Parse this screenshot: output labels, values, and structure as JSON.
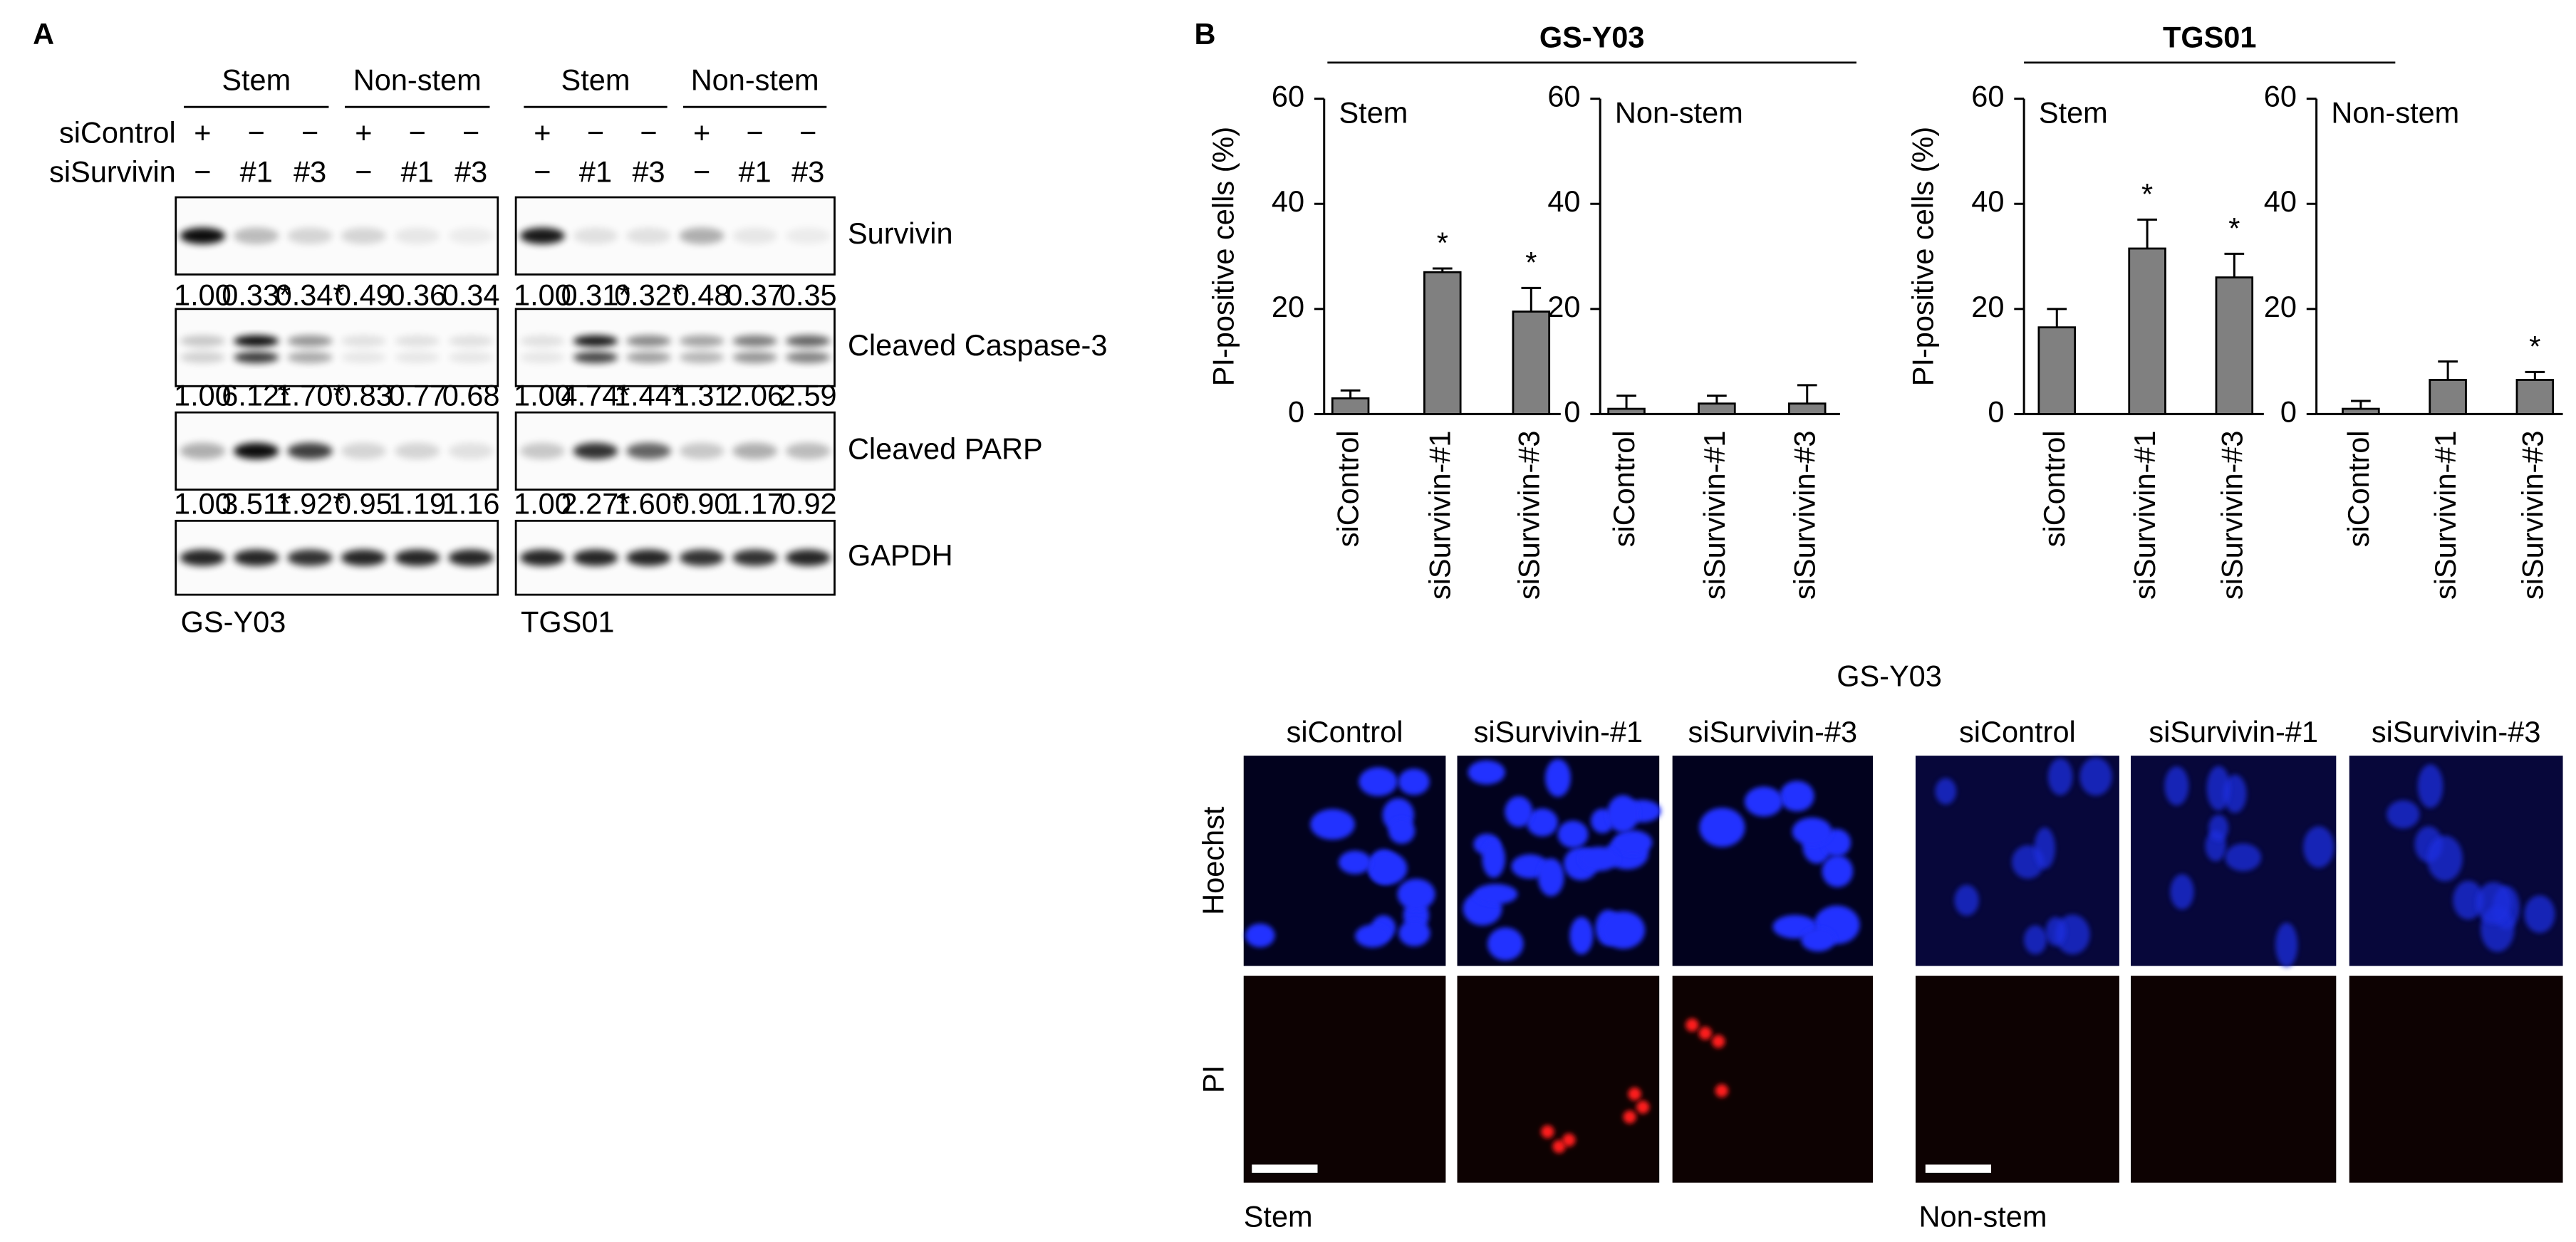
{
  "panel_a": {
    "label": "A",
    "row_labels": [
      "siControl",
      "siSurvivin"
    ],
    "blot_labels": [
      "Survivin",
      "Cleaved Caspase-3",
      "Cleaved PARP",
      "GAPDH"
    ],
    "cell_lines": [
      {
        "name": "GS-Y03",
        "groups": [
          "Stem",
          "Non-stem"
        ],
        "lanes": [
          [
            "+",
            "−",
            "−",
            "+",
            "−",
            "−"
          ],
          [
            "−",
            "#1",
            "#3",
            "−",
            "#1",
            "#3"
          ]
        ],
        "quant": [
          [
            "1.00",
            "0.33*",
            "0.34*",
            "0.49",
            "0.36",
            "0.34"
          ],
          [
            "1.00",
            "6.12*",
            "1.70*",
            "0.83",
            "0.77",
            "0.68"
          ],
          [
            "1.00",
            "3.51*",
            "1.92*",
            "0.95",
            "1.19",
            "1.16"
          ]
        ]
      },
      {
        "name": "TGS01",
        "groups": [
          "Stem",
          "Non-stem"
        ],
        "lanes": [
          [
            "+",
            "−",
            "−",
            "+",
            "−",
            "−"
          ],
          [
            "−",
            "#1",
            "#3",
            "−",
            "#1",
            "#3"
          ]
        ],
        "quant": [
          [
            "1.00",
            "0.31*",
            "0.32*",
            "0.48",
            "0.37",
            "0.35"
          ],
          [
            "1.00",
            "4.74*",
            "1.44*",
            "1.31",
            "2.06",
            "2.59"
          ],
          [
            "1.00",
            "2.27*",
            "1.60*",
            "0.90",
            "1.17",
            "0.92"
          ]
        ]
      }
    ]
  },
  "panel_b": {
    "label": "B",
    "headers": [
      "GS-Y03",
      "TGS01"
    ]
  },
  "chart_data": [
    {
      "type": "bar",
      "subtitle": "Stem",
      "ylabel": "PI-positive cells (%)",
      "categories": [
        "siControl",
        "siSurvivin-#1",
        "siSurvivin-#3"
      ],
      "values": [
        3,
        27,
        19.5
      ],
      "errors": [
        1.5,
        0.7,
        4.5
      ],
      "significance": [
        null,
        "*",
        "*"
      ],
      "color": "#808080",
      "ylim": [
        0,
        60
      ],
      "yticks": [
        0,
        20,
        40,
        60
      ]
    },
    {
      "type": "bar",
      "subtitle": "Non-stem",
      "categories": [
        "siControl",
        "siSurvivin-#1",
        "siSurvivin-#3"
      ],
      "values": [
        1,
        2,
        2
      ],
      "errors": [
        2.5,
        1.5,
        3.5
      ],
      "significance": [
        null,
        null,
        null
      ],
      "color": "#808080",
      "ylim": [
        0,
        60
      ],
      "yticks": [
        0,
        20,
        40,
        60
      ]
    },
    {
      "type": "bar",
      "subtitle": "Stem",
      "ylabel": "PI-positive cells (%)",
      "categories": [
        "siControl",
        "siSurvivin-#1",
        "siSurvivin-#3"
      ],
      "values": [
        16.5,
        31.5,
        26
      ],
      "errors": [
        3.5,
        5.5,
        4.5
      ],
      "significance": [
        null,
        "*",
        "*"
      ],
      "color": "#808080",
      "ylim": [
        0,
        60
      ],
      "yticks": [
        0,
        20,
        40,
        60
      ]
    },
    {
      "type": "bar",
      "subtitle": "Non-stem",
      "categories": [
        "siControl",
        "siSurvivin-#1",
        "siSurvivin-#3"
      ],
      "values": [
        1,
        6.5,
        6.5
      ],
      "errors": [
        1.5,
        3.5,
        1.5
      ],
      "significance": [
        null,
        null,
        "*"
      ],
      "color": "#808080",
      "ylim": [
        0,
        60
      ],
      "yticks": [
        0,
        20,
        40,
        60
      ]
    }
  ],
  "imaging": {
    "title": "GS-Y03",
    "row_labels": [
      "Hoechst",
      "PI"
    ],
    "conditions": [
      {
        "name": "Stem",
        "columns": [
          "siControl",
          "siSurvivin-#1",
          "siSurvivin-#3"
        ]
      },
      {
        "name": "Non-stem",
        "columns": [
          "siControl",
          "siSurvivin-#1",
          "siSurvivin-#3"
        ]
      }
    ]
  }
}
